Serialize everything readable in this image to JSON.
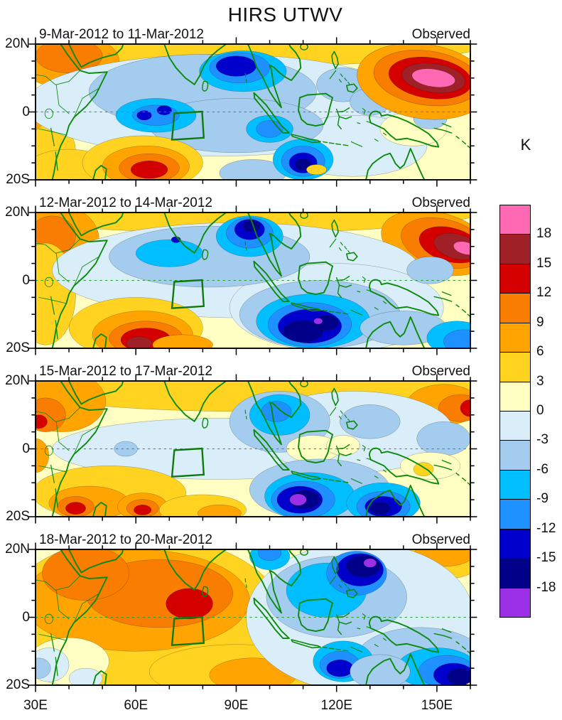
{
  "chart_data": {
    "type": "heatmap",
    "subtype": "filled-contour-anomaly-maps",
    "title": "HIRS UTWV",
    "unit": "K",
    "contour_interval": 3,
    "lon_range": [
      30,
      160
    ],
    "lat_range": [
      -20,
      20
    ],
    "grid": false,
    "x_ticks": [
      {
        "label": "30E",
        "lon": 30
      },
      {
        "label": "60E",
        "lon": 60
      },
      {
        "label": "90E",
        "lon": 90
      },
      {
        "label": "120E",
        "lon": 120
      },
      {
        "label": "150E",
        "lon": 150
      }
    ],
    "y_ticks": [
      {
        "label": "20N",
        "lat": 20
      },
      {
        "label": "0",
        "lat": 0
      },
      {
        "label": "20S",
        "lat": -20
      }
    ],
    "colorbar_labels": [
      "18",
      "15",
      "12",
      "9",
      "6",
      "3",
      "0",
      "-3",
      "-6",
      "-9",
      "-12",
      "-15",
      "-18"
    ],
    "levels": [
      {
        "lo": 18,
        "color": "#FF69B4"
      },
      {
        "lo": 15,
        "color": "#A02028"
      },
      {
        "lo": 12,
        "color": "#D40000"
      },
      {
        "lo": 9,
        "color": "#F97D00"
      },
      {
        "lo": 6,
        "color": "#FFA400"
      },
      {
        "lo": 3,
        "color": "#FFD31F"
      },
      {
        "lo": 0,
        "color": "#FFFFC3"
      },
      {
        "lo": -3,
        "color": "#D9EEF8"
      },
      {
        "lo": -6,
        "color": "#A3CCEE"
      },
      {
        "lo": -9,
        "color": "#00BEFF"
      },
      {
        "lo": -12,
        "color": "#1E90FF"
      },
      {
        "lo": -15,
        "color": "#0000CD"
      },
      {
        "lo": -18,
        "color": "#000088"
      },
      {
        "lo": -21,
        "color": "#9B30E6"
      }
    ],
    "map_colors": {
      "coastline": "#0A8A0A",
      "equator_line": "#2E9E2E",
      "study_box": "#0B7A0B",
      "frame": "#000000"
    },
    "study_box": {
      "corners_lonlat": [
        [
          71.5,
          -0.4
        ],
        [
          79.8,
          0.1
        ],
        [
          80.3,
          -7.6
        ],
        [
          70.8,
          -8.2
        ]
      ]
    },
    "feature_format": "[band_lower_bound_K, center_lon_E, center_lat_N, radius_lon_deg, radius_lat_deg, rotation_deg?]",
    "panels": [
      {
        "period": "9-Mar-2012 to 11-Mar-2012",
        "source": "Observed",
        "base_level": 0,
        "features": [
          [
            3,
            95,
            21,
            72,
            7.5
          ],
          [
            6,
            40,
            15,
            15,
            8
          ],
          [
            9,
            40,
            16.5,
            10,
            5
          ],
          [
            6,
            28,
            -2,
            6,
            7
          ],
          [
            3,
            35,
            -12,
            7,
            9
          ],
          [
            3,
            40,
            -17,
            13,
            6
          ],
          [
            -3,
            85,
            2,
            58,
            15
          ],
          [
            -3,
            125,
            -10,
            22,
            9
          ],
          [
            0,
            143,
            -5,
            10,
            5
          ],
          [
            -6,
            80,
            6,
            34,
            11
          ],
          [
            -6,
            90,
            -4,
            26,
            8
          ],
          [
            -6,
            122,
            8,
            8,
            5
          ],
          [
            -6,
            130,
            3,
            6,
            4
          ],
          [
            -6,
            148,
            -2,
            5,
            3
          ],
          [
            -6,
            95,
            -18,
            10,
            4
          ],
          [
            -9,
            66,
            -1,
            12,
            5
          ],
          [
            -12,
            66,
            -1,
            7,
            3
          ],
          [
            -15,
            62.5,
            -1,
            2.2,
            1.4
          ],
          [
            -15,
            68.5,
            0.5,
            2.2,
            1.4
          ],
          [
            -9,
            92,
            12,
            13,
            6
          ],
          [
            -12,
            91,
            13,
            9,
            4.5
          ],
          [
            -15,
            90,
            13.5,
            6,
            3
          ],
          [
            -9,
            100,
            -5,
            7,
            4
          ],
          [
            -12,
            100,
            -5,
            4,
            2.5
          ],
          [
            -9,
            110,
            -14,
            9,
            6
          ],
          [
            -12,
            110,
            -14.5,
            6.5,
            4.5
          ],
          [
            -15,
            110,
            -15,
            4.2,
            3
          ],
          [
            -18,
            110,
            -15.5,
            2.4,
            1.7
          ],
          [
            3,
            62,
            -15,
            18,
            8
          ],
          [
            6,
            63,
            -16,
            13,
            6
          ],
          [
            9,
            64,
            -16.5,
            9,
            4.2
          ],
          [
            12,
            64,
            -17,
            5.5,
            2.6
          ],
          [
            3,
            114,
            -17,
            3,
            1.5
          ],
          [
            6,
            146,
            9,
            20,
            11,
            8
          ],
          [
            9,
            147,
            10,
            16,
            8,
            8
          ],
          [
            12,
            148,
            10,
            12.5,
            6,
            8
          ],
          [
            15,
            149,
            10,
            9.5,
            4.2,
            8
          ],
          [
            18,
            149,
            10,
            6.5,
            2.6,
            8
          ]
        ]
      },
      {
        "period": "12-Mar-2012 to 14-Mar-2012",
        "source": "Observed",
        "base_level": 0,
        "features": [
          [
            3,
            90,
            21,
            75,
            7
          ],
          [
            6,
            37,
            12,
            12,
            10
          ],
          [
            9,
            35,
            13,
            7,
            6
          ],
          [
            6,
            29,
            0,
            5,
            12
          ],
          [
            3,
            33,
            -4,
            9,
            15
          ],
          [
            6,
            150,
            11,
            17,
            9,
            14
          ],
          [
            9,
            152,
            11,
            13,
            7,
            14
          ],
          [
            12,
            154,
            10.5,
            9.5,
            5,
            14
          ],
          [
            15,
            156,
            10,
            7,
            3.6,
            14
          ],
          [
            18,
            158.5,
            9.5,
            3.6,
            1.8,
            14
          ],
          [
            -3,
            90,
            3,
            55,
            14
          ],
          [
            -3,
            120,
            -8,
            32,
            13
          ],
          [
            -6,
            82,
            7,
            30,
            9
          ],
          [
            -9,
            70,
            8,
            10,
            4
          ],
          [
            -9,
            94,
            13,
            10,
            6
          ],
          [
            -12,
            94,
            14,
            7,
            4.5
          ],
          [
            -15,
            94,
            15,
            4.5,
            3
          ],
          [
            -18,
            94.5,
            16,
            2.5,
            1.7
          ],
          [
            -15,
            72,
            12,
            1.4,
            0.9
          ],
          [
            -6,
            115,
            -10,
            24,
            10
          ],
          [
            -6,
            148,
            3,
            7,
            4
          ],
          [
            -9,
            113,
            -12,
            17,
            8
          ],
          [
            -12,
            112,
            -13,
            12.5,
            6.5
          ],
          [
            -15,
            112,
            -13.5,
            9.5,
            5
          ],
          [
            -18,
            110,
            -15,
            6,
            3.2
          ],
          [
            -18,
            117,
            -12.5,
            3.6,
            2.2
          ],
          [
            -21,
            114.5,
            -12,
            1.3,
            0.9
          ],
          [
            -6,
            140,
            -14,
            13,
            5
          ],
          [
            -9,
            156,
            -17,
            9,
            5
          ],
          [
            -12,
            158,
            -18,
            6,
            3.5
          ],
          [
            3,
            60,
            -14,
            20,
            9
          ],
          [
            6,
            62,
            -16,
            15,
            7
          ],
          [
            9,
            63,
            -17,
            11,
            5
          ],
          [
            12,
            63,
            -17.5,
            7.5,
            3.5
          ],
          [
            15,
            61,
            -18.5,
            3.8,
            1.9
          ],
          [
            6,
            74,
            -19,
            9,
            3
          ]
        ]
      },
      {
        "period": "15-Mar-2012 to 17-Mar-2012",
        "source": "Observed",
        "base_level": 0,
        "features": [
          [
            3,
            95,
            19,
            75,
            8
          ],
          [
            6,
            38,
            14,
            13,
            9
          ],
          [
            9,
            33,
            10,
            6,
            5
          ],
          [
            12,
            31,
            8,
            2.5,
            2
          ],
          [
            6,
            30,
            -2,
            4,
            5
          ],
          [
            6,
            152,
            13,
            11,
            6
          ],
          [
            9,
            157,
            12,
            6.5,
            4
          ],
          [
            12,
            160,
            12,
            3,
            2.5
          ],
          [
            -3,
            85,
            0,
            50,
            9
          ],
          [
            -3,
            125,
            5,
            30,
            12
          ],
          [
            -6,
            103,
            8,
            15,
            9
          ],
          [
            -9,
            103,
            10,
            9,
            6
          ],
          [
            -12,
            102,
            11,
            4.5,
            3
          ],
          [
            -6,
            130,
            8,
            9,
            5
          ],
          [
            -6,
            152,
            3,
            8,
            5
          ],
          [
            -6,
            57,
            0,
            3.5,
            2.2
          ],
          [
            0,
            113,
            0,
            8,
            4
          ],
          [
            0,
            122,
            1,
            5,
            3
          ],
          [
            0,
            148,
            -5,
            9,
            4
          ],
          [
            3,
            146,
            -6,
            3,
            2
          ],
          [
            -6,
            115,
            -12,
            21,
            9
          ],
          [
            -9,
            112,
            -14,
            13.5,
            7
          ],
          [
            -12,
            110,
            -15,
            9.5,
            5.5
          ],
          [
            -15,
            109,
            -15,
            6.8,
            4
          ],
          [
            -18,
            110.5,
            -15,
            4.5,
            2.7
          ],
          [
            -21,
            108.5,
            -15,
            2.5,
            1.7
          ],
          [
            -9,
            134,
            -16,
            11,
            6
          ],
          [
            -12,
            134,
            -17,
            8,
            4.5
          ],
          [
            -15,
            134,
            -17,
            5.5,
            3
          ],
          [
            -18,
            133,
            -17.5,
            3,
            1.8
          ],
          [
            3,
            52,
            -13,
            23,
            8
          ],
          [
            6,
            46,
            -16,
            12,
            5
          ],
          [
            9,
            42,
            -17,
            5.5,
            3
          ],
          [
            12,
            42,
            -17.5,
            3,
            1.8
          ],
          [
            6,
            62,
            -17,
            7.5,
            4
          ],
          [
            9,
            62,
            -17.5,
            4.8,
            2.6
          ],
          [
            12,
            62,
            -18,
            2.6,
            1.5
          ],
          [
            3,
            80,
            -18,
            13,
            4.5
          ],
          [
            6,
            85,
            -19,
            6.5,
            2.5
          ]
        ]
      },
      {
        "period": "18-Mar-2012 to 20-Mar-2012",
        "source": "Observed",
        "base_level": 0,
        "features": [
          [
            3,
            62,
            0,
            42,
            24
          ],
          [
            6,
            60,
            5,
            34,
            15
          ],
          [
            9,
            67,
            7,
            22,
            10
          ],
          [
            9,
            45,
            13,
            13,
            8
          ],
          [
            12,
            76,
            4,
            7,
            4.5
          ],
          [
            3,
            90,
            -16,
            26,
            8
          ],
          [
            6,
            95,
            -17,
            13,
            5
          ],
          [
            0,
            40,
            -13,
            12,
            7
          ],
          [
            -3,
            34,
            -14,
            6,
            5
          ],
          [
            -6,
            31,
            -15,
            3.5,
            3
          ],
          [
            -3,
            45,
            -18,
            5,
            3
          ],
          [
            3,
            150,
            17,
            14,
            6
          ],
          [
            6,
            152,
            18.5,
            9,
            3.5
          ],
          [
            -3,
            127,
            0,
            34,
            22
          ],
          [
            -6,
            120,
            6,
            21,
            12
          ],
          [
            -9,
            117,
            8,
            12,
            8
          ],
          [
            -9,
            100,
            18,
            6,
            4
          ],
          [
            -12,
            100,
            19,
            3.5,
            2.3
          ],
          [
            -12,
            126,
            13,
            9,
            6.5
          ],
          [
            -15,
            127,
            14,
            7,
            4.8
          ],
          [
            -18,
            128,
            15,
            5,
            3.2
          ],
          [
            -21,
            130,
            16,
            1.9,
            1.3
          ],
          [
            -6,
            145,
            -12,
            19,
            9
          ],
          [
            -9,
            150,
            -15,
            12,
            6
          ],
          [
            -12,
            153,
            -16,
            8.5,
            4.8
          ],
          [
            -15,
            155,
            -17,
            6,
            3.5
          ],
          [
            -18,
            157,
            -17.5,
            4,
            2.4
          ],
          [
            -9,
            122,
            -13,
            9,
            6
          ],
          [
            -12,
            121,
            -14,
            6,
            4
          ],
          [
            -15,
            121,
            -15,
            4,
            2.5
          ],
          [
            -6,
            133,
            -16,
            9,
            5
          ]
        ]
      }
    ]
  }
}
